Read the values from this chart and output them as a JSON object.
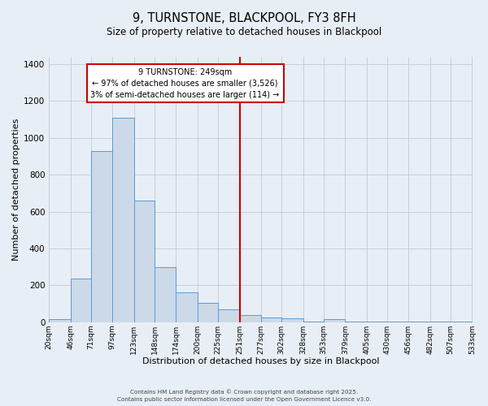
{
  "title": "9, TURNSTONE, BLACKPOOL, FY3 8FH",
  "subtitle": "Size of property relative to detached houses in Blackpool",
  "xlabel": "Distribution of detached houses by size in Blackpool",
  "ylabel": "Number of detached properties",
  "bar_color": "#ccd9e8",
  "bar_edgecolor": "#5b9bd5",
  "background_color": "#e8eef5",
  "grid_color": "#b8c4d0",
  "vline_value": 251,
  "vline_color": "#cc0000",
  "bins": [
    20,
    46,
    71,
    97,
    123,
    148,
    174,
    200,
    225,
    251,
    277,
    302,
    328,
    353,
    379,
    405,
    430,
    456,
    482,
    507,
    533
  ],
  "counts": [
    15,
    235,
    930,
    1110,
    660,
    300,
    160,
    105,
    70,
    40,
    25,
    20,
    5,
    15,
    5,
    2,
    2,
    1,
    1,
    2
  ],
  "annotation_title": "9 TURNSTONE: 249sqm",
  "annotation_line1": "← 97% of detached houses are smaller (3,526)",
  "annotation_line2": "3% of semi-detached houses are larger (114) →",
  "annotation_box_color": "#ffffff",
  "annotation_box_edgecolor": "#cc0000",
  "ylim": [
    0,
    1440
  ],
  "xlim": [
    20,
    533
  ],
  "footnote1": "Contains HM Land Registry data © Crown copyright and database right 2025.",
  "footnote2": "Contains public sector information licensed under the Open Government Licence v3.0."
}
